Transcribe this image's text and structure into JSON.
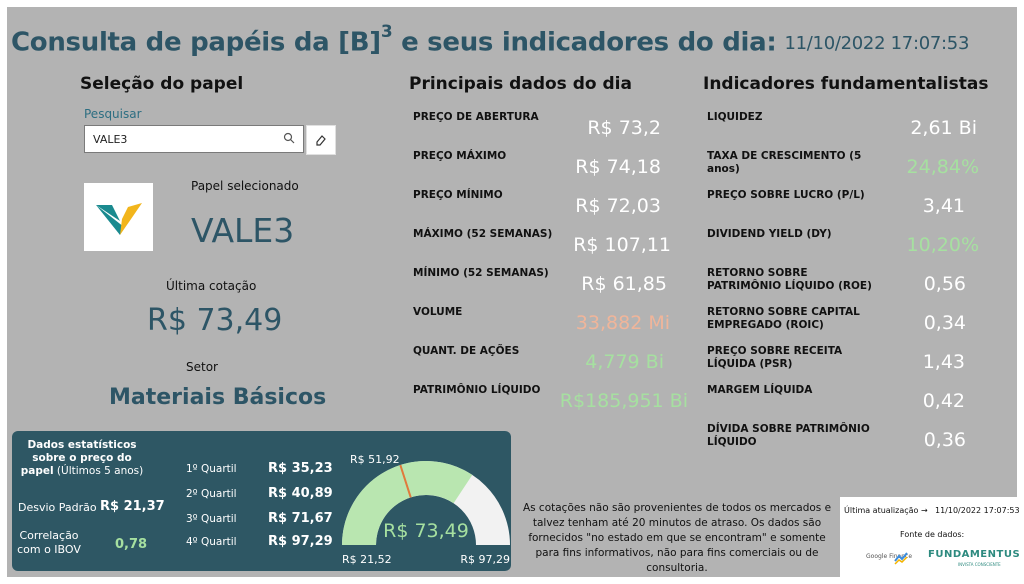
{
  "header": {
    "title": "Consulta de papéis da [B]",
    "title_sup": "3",
    "title_suffix": " e seus indicadores do dia:",
    "datetime": "11/10/2022 17:07:53"
  },
  "selection": {
    "section_title": "Seleção do papel",
    "search_label": "Pesquisar",
    "search_value": "VALE3",
    "selected_label": "Papel selecionado",
    "selected_ticker": "VALE3",
    "last_quote_label": "Última cotação",
    "last_quote_value": "R$ 73,49",
    "sector_label": "Setor",
    "sector_value": "Materiais Básicos"
  },
  "main_data": {
    "section_title": "Principais dados do dia",
    "items": [
      {
        "label": "PREÇO DE ABERTURA",
        "value": "R$ 73,2"
      },
      {
        "label": "PREÇO MÁXIMO",
        "value": "R$ 74,18"
      },
      {
        "label": "PREÇO MÍNIMO",
        "value": "R$ 72,03"
      },
      {
        "label": "MÁXIMO (52 SEMANAS)",
        "value": "R$ 107,11"
      },
      {
        "label": "MÍNIMO (52 SEMANAS)",
        "value": "R$ 61,85"
      },
      {
        "label": "VOLUME",
        "value": "33,882 Mi"
      },
      {
        "label": "QUANT. DE AÇÕES",
        "value": "4,779 Bi"
      },
      {
        "label": "PATRIMÔNIO LÍQUIDO",
        "value": "R$185,951 Bi"
      }
    ]
  },
  "fundamentals": {
    "section_title": "Indicadores fundamentalistas",
    "items": [
      {
        "label": "LIQUIDEZ",
        "value": "2,61 Bi"
      },
      {
        "label": "TAXA DE CRESCIMENTO (5 anos)",
        "value": "24,84%"
      },
      {
        "label": "PREÇO SOBRE LUCRO (P/L)",
        "value": "3,41"
      },
      {
        "label": "DIVIDEND YIELD (DY)",
        "value": "10,20%"
      },
      {
        "label": "RETORNO SOBRE PATRIMÔNIO LÍQUIDO (ROE)",
        "value": "0,56"
      },
      {
        "label": "RETORNO SOBRE CAPITAL EMPREGADO (ROIC)",
        "value": "0,34"
      },
      {
        "label": "PREÇO SOBRE RECEITA LÍQUIDA (PSR)",
        "value": "1,43"
      },
      {
        "label": "MARGEM LÍQUIDA",
        "value": "0,42"
      },
      {
        "label": "DÍVIDA SOBRE PATRIMÔNIO LÍQUIDO",
        "value": "0,36"
      }
    ]
  },
  "stats": {
    "title_bold": "Dados estatísticos sobre o preço do papel",
    "title_normal": " (Últimos 5 anos)",
    "std_label": "Desvio Padrão",
    "std_value": "R$ 21,37",
    "corr_label": "Correlação com o IBOV",
    "corr_value": "0,78",
    "quartiles": [
      {
        "label": "1º Quartil",
        "value": "R$ 35,23"
      },
      {
        "label": "2º Quartil",
        "value": "R$ 40,89"
      },
      {
        "label": "3º Quartil",
        "value": "R$ 71,67"
      },
      {
        "label": "4º Quartil",
        "value": "R$ 97,29"
      }
    ]
  },
  "gauge": {
    "min_label": "R$ 21,52",
    "max_label": "R$ 97,29",
    "target_label": "R$ 51,92",
    "value_label": "R$ 73,49",
    "min": 21.52,
    "max": 97.29,
    "value": 73.49,
    "target": 51.92,
    "fill_color": "#b9e6b0",
    "track_color": "#f2f2f2",
    "target_color": "#e07a3c"
  },
  "footer": {
    "disclaimer": "As cotações não são provenientes de todos os mercados e talvez tenham até 20 minutos de atraso. Os dados são fornecidos \"no estado em que se encontram\" e somente para fins informativos, não para fins comerciais ou de consultoria.",
    "update_label": "Última atualização →",
    "update_value": "11/10/2022 17:07:53",
    "source_label": "Fonte de dados:",
    "source_google": "Google Finance",
    "source_fundamentus": "FUNDAMENTUS",
    "source_fundamentus_sub": "INVISTA CONSCIENTE"
  },
  "colors": {
    "accent": "#2d5566",
    "positive": "#a6e0a0",
    "volume": "#f0b59a"
  }
}
